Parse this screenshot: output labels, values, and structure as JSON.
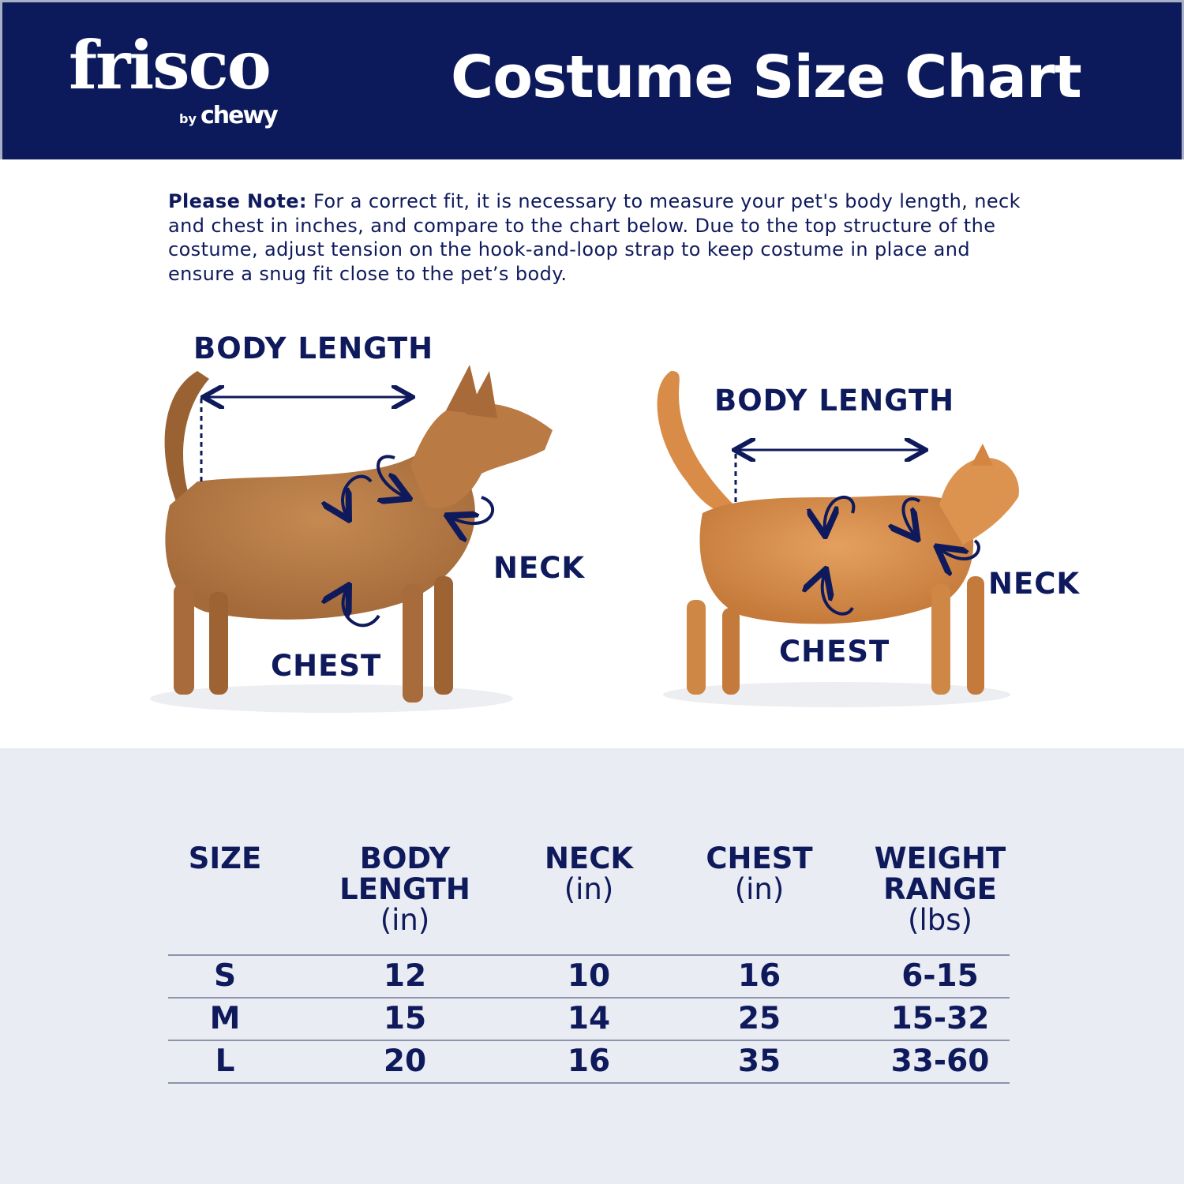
{
  "header": {
    "logo_main": "frisco",
    "logo_by": "by",
    "logo_brand": "chewy",
    "title": "Costume Size Chart",
    "bg_color": "#0c1a5c"
  },
  "note": {
    "label": "Please Note:",
    "text": " For a correct fit, it is necessary to measure your pet's body length, neck and chest in inches, and compare to the chart below. Due to the top structure of the costume, adjust tension on the hook-and-loop strap to keep costume in place and ensure a snug fit close to the pet’s body."
  },
  "dog": {
    "body_length": "BODY LENGTH",
    "neck": "NECK",
    "chest": "CHEST"
  },
  "cat": {
    "body_length": "BODY LENGTH",
    "neck": "NECK",
    "chest": "CHEST"
  },
  "table": {
    "headers": [
      {
        "l1": "SIZE",
        "l2": "",
        "unit": ""
      },
      {
        "l1": "BODY",
        "l2": "LENGTH",
        "unit": "(in)"
      },
      {
        "l1": "NECK",
        "l2": "",
        "unit": "(in)"
      },
      {
        "l1": "CHEST",
        "l2": "",
        "unit": "(in)"
      },
      {
        "l1": "WEIGHT",
        "l2": "RANGE",
        "unit": "(lbs)"
      }
    ],
    "rows": [
      [
        "S",
        "12",
        "10",
        "16",
        "6-15"
      ],
      [
        "M",
        "15",
        "14",
        "25",
        "15-32"
      ],
      [
        "L",
        "20",
        "16",
        "35",
        "33-60"
      ]
    ]
  }
}
